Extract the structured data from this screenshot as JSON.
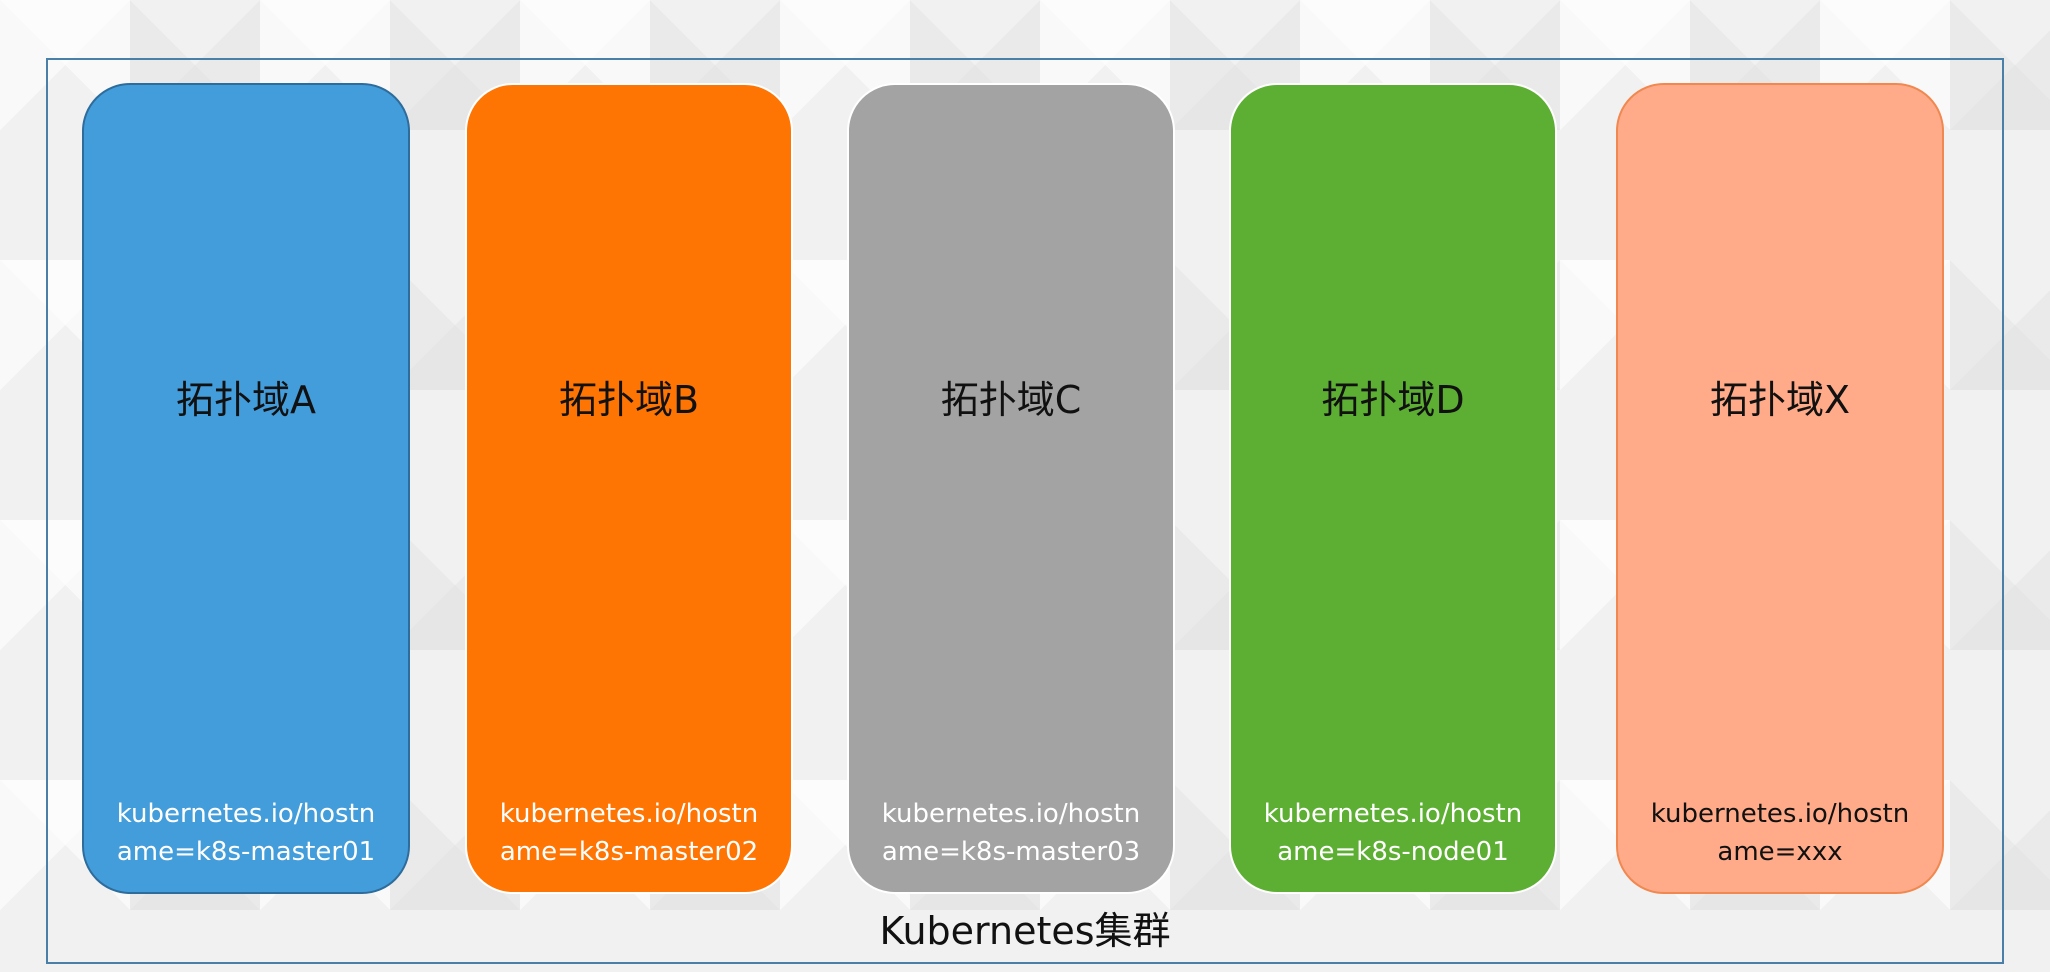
{
  "cluster": {
    "label": "Kubernetes集群",
    "border_color": "#4a7fa8"
  },
  "domains": [
    {
      "title": "拓扑域A",
      "label": "kubernetes.io/hostn\name=k8s-master01",
      "fill": "#439ddb",
      "border": "#2e6c9c",
      "label_color": "#ffffff"
    },
    {
      "title": "拓扑域B",
      "label": "kubernetes.io/hostn\name=k8s-master02",
      "fill": "#fe7504",
      "border": "#ffffff",
      "label_color": "#ffffff"
    },
    {
      "title": "拓扑域C",
      "label": "kubernetes.io/hostn\name=k8s-master03",
      "fill": "#a3a3a3",
      "border": "#ffffff",
      "label_color": "#ffffff"
    },
    {
      "title": "拓扑域D",
      "label": "kubernetes.io/hostn\name=k8s-node01",
      "fill": "#5daf33",
      "border": "#ffffff",
      "label_color": "#ffffff"
    },
    {
      "title": "拓扑域X",
      "label": "kubernetes.io/hostn\name=xxx",
      "fill": "#ffab8a",
      "border": "#f08850",
      "label_color": "#111111"
    }
  ]
}
